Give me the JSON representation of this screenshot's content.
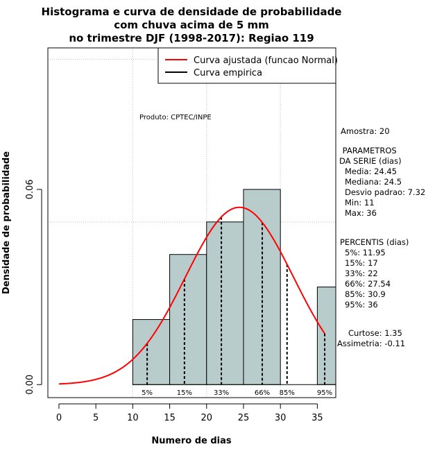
{
  "chart_data": {
    "type": "bar",
    "title_lines": [
      "Histograma e curva de densidade de probabilidade",
      "com chuva acima de 5 mm",
      "no trimestre DJF (1998-2017): Regiao 119"
    ],
    "xlabel": "Numero de dias",
    "ylabel": "Densidade de probabilidade",
    "xlim": [
      -1.5,
      37.5
    ],
    "ylim": [
      -0.004,
      0.1035
    ],
    "x_ticks": [
      0,
      5,
      10,
      15,
      20,
      25,
      30,
      35
    ],
    "y_ticks": [
      0.0,
      0.06
    ],
    "y_tick_labels": [
      "0.00",
      "0.06"
    ],
    "grid": true,
    "grid_x": [
      10,
      20,
      30
    ],
    "grid_y": [
      0.05,
      0.1
    ],
    "legend": {
      "placement": "top-right",
      "entries": [
        {
          "label": "Curva ajustada (funcao Normal)",
          "color": "#ff0000"
        },
        {
          "label": "Curva empirica",
          "color": "#000000"
        }
      ]
    },
    "bars": [
      {
        "x0": 10,
        "x1": 15,
        "density": 0.02
      },
      {
        "x0": 15,
        "x1": 20,
        "density": 0.04
      },
      {
        "x0": 20,
        "x1": 25,
        "density": 0.05
      },
      {
        "x0": 25,
        "x1": 30,
        "density": 0.06
      },
      {
        "x0": 30,
        "x1": 35,
        "density": 0.0
      },
      {
        "x0": 35,
        "x1": 40,
        "density": 0.03
      }
    ],
    "bar_color": "#b8cccc",
    "normal_curve": {
      "mean": 24.45,
      "sd": 7.32,
      "x_start": 0,
      "x_end": 36,
      "color": "#ff0000"
    },
    "percentile_lines": [
      {
        "label": "5%",
        "x": 11.95
      },
      {
        "label": "15%",
        "x": 17
      },
      {
        "label": "33%",
        "x": 22
      },
      {
        "label": "66%",
        "x": 27.54
      },
      {
        "label": "85%",
        "x": 30.9
      },
      {
        "label": "95%",
        "x": 36
      }
    ],
    "annotation": "Produto: CPTEC/INPE",
    "side_panel": {
      "sample": "Amostra: 20",
      "params_title": [
        " PARAMETROS",
        "DA SERIE (dias)"
      ],
      "params": [
        "Media: 24.45",
        "Mediana: 24.5",
        "Desvio padrao: 7.32",
        "Min: 11",
        "Max: 36"
      ],
      "percentis_title": "PERCENTIS (dias)",
      "percentis": [
        "5%: 11.95",
        "15%: 17",
        "33%: 22",
        "66%: 27.54",
        "85%: 30.9",
        "95%: 36"
      ],
      "shape": [
        "Curtose: 1.35",
        "Assimetria: -0.11"
      ]
    }
  }
}
